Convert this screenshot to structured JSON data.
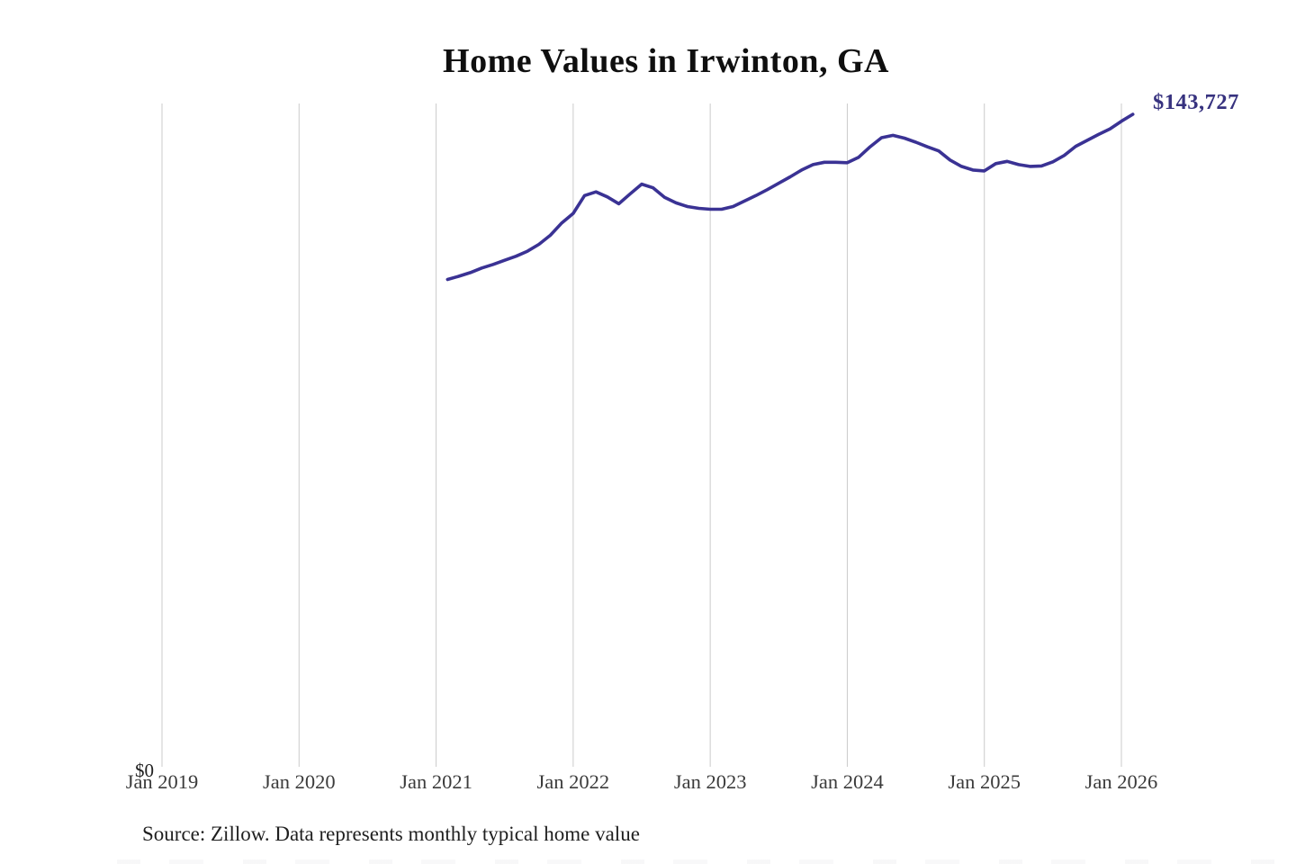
{
  "page": {
    "source_note": "Source: Zillow. Data represents monthly typical home value"
  },
  "chart_data": {
    "type": "line",
    "title": "Home Values in Irwinton, GA",
    "xlabel": "",
    "ylabel": "",
    "x_tick_labels": [
      "Jan 2019",
      "Jan 2020",
      "Jan 2021",
      "Jan 2022",
      "Jan 2023",
      "Jan 2024",
      "Jan 2025",
      "Jan 2026"
    ],
    "y_tick_labels": [
      "$0"
    ],
    "ylim": [
      0,
      145500
    ],
    "grid": "vertical-gridlines-only",
    "legend": "none",
    "line_color": "#3a3294",
    "label_color": "#37327f",
    "gridline_color": "#cbcbcb",
    "latest_value": 143727,
    "latest_value_label": "$143,727",
    "series": [
      {
        "name": "typical-home-value",
        "x": [
          "2021-02",
          "2021-03",
          "2021-04",
          "2021-05",
          "2021-06",
          "2021-07",
          "2021-08",
          "2021-09",
          "2021-10",
          "2021-11",
          "2021-12",
          "2022-01",
          "2022-02",
          "2022-03",
          "2022-04",
          "2022-05",
          "2022-06",
          "2022-07",
          "2022-08",
          "2022-09",
          "2022-10",
          "2022-11",
          "2022-12",
          "2023-01",
          "2023-02",
          "2023-03",
          "2023-04",
          "2023-05",
          "2023-06",
          "2023-07",
          "2023-08",
          "2023-09",
          "2023-10",
          "2023-11",
          "2023-12",
          "2024-01",
          "2024-02",
          "2024-03",
          "2024-04",
          "2024-05",
          "2024-06",
          "2024-07",
          "2024-08",
          "2024-09",
          "2024-10",
          "2024-11",
          "2024-12",
          "2025-01",
          "2025-02",
          "2025-03",
          "2025-04",
          "2025-05",
          "2025-06",
          "2025-07",
          "2025-08",
          "2025-09",
          "2025-10",
          "2025-11",
          "2025-12",
          "2026-01",
          "2026-02"
        ],
        "values": [
          107500,
          108200,
          109000,
          110000,
          110800,
          111700,
          112600,
          113700,
          115200,
          117200,
          119900,
          122000,
          125900,
          126700,
          125600,
          124100,
          126300,
          128400,
          127600,
          125500,
          124300,
          123500,
          123100,
          122900,
          122900,
          123500,
          124700,
          125900,
          127200,
          128600,
          130000,
          131500,
          132700,
          133200,
          133200,
          133100,
          134300,
          136600,
          138600,
          139100,
          138500,
          137600,
          136600,
          135700,
          133700,
          132300,
          131500,
          131300,
          132900,
          133400,
          132700,
          132300,
          132400,
          133300,
          134700,
          136700,
          138000,
          139300,
          140500,
          142200,
          143727
        ]
      }
    ]
  }
}
